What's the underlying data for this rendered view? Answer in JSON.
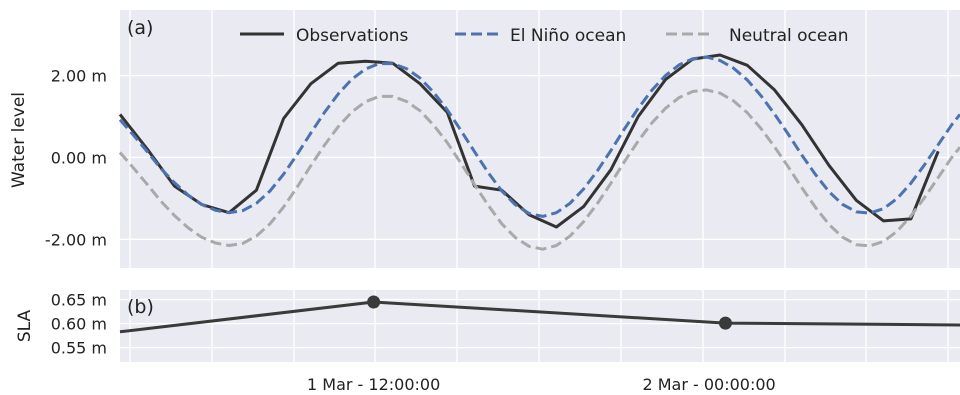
{
  "chart_data": [
    {
      "type": "line",
      "panel_label": "(a)",
      "ylabel": "Water level",
      "ylim": [
        -2.7,
        3.6
      ],
      "yticks": [
        -2,
        0,
        2
      ],
      "ytick_labels": [
        "-2.00 m",
        "0.00 m",
        "2.00 m"
      ],
      "xlim": [
        0,
        30.8
      ],
      "grid": true,
      "legend_position": "top",
      "series": [
        {
          "name": "Observations",
          "color": "#333333",
          "style": "solid",
          "x": [
            0,
            1,
            2,
            3,
            4,
            5,
            6,
            7,
            8,
            9,
            10,
            11,
            12,
            13,
            14,
            15,
            16,
            17,
            18,
            19,
            20,
            21,
            22,
            23,
            24,
            25,
            26,
            27,
            28,
            29,
            30
          ],
          "values": [
            1.05,
            0.2,
            -0.7,
            -1.15,
            -1.35,
            -0.8,
            0.95,
            1.8,
            2.3,
            2.35,
            2.3,
            1.8,
            1.1,
            -0.7,
            -0.8,
            -1.4,
            -1.7,
            -1.2,
            -0.3,
            1.0,
            1.9,
            2.4,
            2.5,
            2.25,
            1.65,
            0.8,
            -0.2,
            -1.05,
            -1.55,
            -1.5,
            0.15
          ]
        },
        {
          "name": "El Niño ocean",
          "color": "#4C72B0",
          "style": "dashed",
          "x": [
            0,
            0.5,
            1,
            1.5,
            2,
            2.5,
            3,
            3.5,
            4,
            4.5,
            5,
            5.5,
            6,
            6.5,
            7,
            7.5,
            8,
            8.5,
            9,
            9.5,
            10,
            10.5,
            11,
            11.5,
            12,
            12.5,
            13,
            13.5,
            14,
            14.5,
            15,
            15.5,
            16,
            16.5,
            17,
            17.5,
            18,
            18.5,
            19,
            19.5,
            20,
            20.5,
            21,
            21.5,
            22,
            22.5,
            23,
            23.5,
            24,
            24.5,
            25,
            25.5,
            26,
            26.5,
            27,
            27.5,
            28,
            28.5,
            29,
            29.5,
            30,
            30.5,
            30.8
          ],
          "values": [
            0.92,
            0.54,
            0.14,
            -0.27,
            -0.62,
            -0.92,
            -1.15,
            -1.29,
            -1.35,
            -1.3,
            -1.12,
            -0.82,
            -0.41,
            0.08,
            0.6,
            1.1,
            1.55,
            1.91,
            2.16,
            2.29,
            2.29,
            2.17,
            1.94,
            1.59,
            1.16,
            0.66,
            0.14,
            -0.37,
            -0.82,
            -1.16,
            -1.37,
            -1.44,
            -1.35,
            -1.12,
            -0.77,
            -0.33,
            0.17,
            0.7,
            1.2,
            1.64,
            2.0,
            2.26,
            2.41,
            2.45,
            2.37,
            2.18,
            1.89,
            1.51,
            1.06,
            0.57,
            0.06,
            -0.42,
            -0.84,
            -1.15,
            -1.33,
            -1.36,
            -1.25,
            -1.0,
            -0.63,
            -0.18,
            0.31,
            0.8,
            1.05
          ]
        },
        {
          "name": "Neutral ocean",
          "color": "#A9A9A9",
          "style": "dashed",
          "x": [
            0,
            0.5,
            1,
            1.5,
            2,
            2.5,
            3,
            3.5,
            4,
            4.5,
            5,
            5.5,
            6,
            6.5,
            7,
            7.5,
            8,
            8.5,
            9,
            9.5,
            10,
            10.5,
            11,
            11.5,
            12,
            12.5,
            13,
            13.5,
            14,
            14.5,
            15,
            15.5,
            16,
            16.5,
            17,
            17.5,
            18,
            18.5,
            19,
            19.5,
            20,
            20.5,
            21,
            21.5,
            22,
            22.5,
            23,
            23.5,
            24,
            24.5,
            25,
            25.5,
            26,
            26.5,
            27,
            27.5,
            28,
            28.5,
            29,
            29.5,
            30,
            30.5,
            30.8
          ],
          "values": [
            0.12,
            -0.26,
            -0.66,
            -1.07,
            -1.42,
            -1.72,
            -1.95,
            -2.09,
            -2.15,
            -2.1,
            -1.92,
            -1.62,
            -1.21,
            -0.72,
            -0.2,
            0.3,
            0.75,
            1.11,
            1.36,
            1.49,
            1.49,
            1.37,
            1.14,
            0.79,
            0.36,
            -0.14,
            -0.66,
            -1.17,
            -1.62,
            -1.96,
            -2.17,
            -2.24,
            -2.15,
            -1.92,
            -1.57,
            -1.13,
            -0.63,
            -0.1,
            0.4,
            0.84,
            1.2,
            1.46,
            1.61,
            1.65,
            1.57,
            1.38,
            1.09,
            0.71,
            0.26,
            -0.23,
            -0.74,
            -1.22,
            -1.64,
            -1.95,
            -2.13,
            -2.16,
            -2.05,
            -1.8,
            -1.43,
            -0.98,
            -0.49,
            0.0,
            0.25
          ]
        }
      ]
    },
    {
      "type": "line",
      "panel_label": "(b)",
      "ylabel": "SLA",
      "ylim": [
        0.52,
        0.67
      ],
      "yticks": [
        0.55,
        0.6,
        0.65
      ],
      "ytick_labels": [
        "0.55 m",
        "0.60 m",
        "0.65 m"
      ],
      "xlim": [
        0,
        30.8
      ],
      "grid": true,
      "series": [
        {
          "color": "#3a3a3a",
          "style": "solid",
          "x": [
            0,
            9.3,
            22.2,
            30.8
          ],
          "values": [
            0.583,
            0.645,
            0.601,
            0.597
          ],
          "markers": [
            1,
            2
          ]
        }
      ]
    }
  ],
  "x_axis": {
    "xtick_labels": [
      {
        "x": 9.3,
        "label": "1 Mar - 12:00:00"
      },
      {
        "x": 21.6,
        "label": "2 Mar - 00:00:00"
      }
    ]
  }
}
